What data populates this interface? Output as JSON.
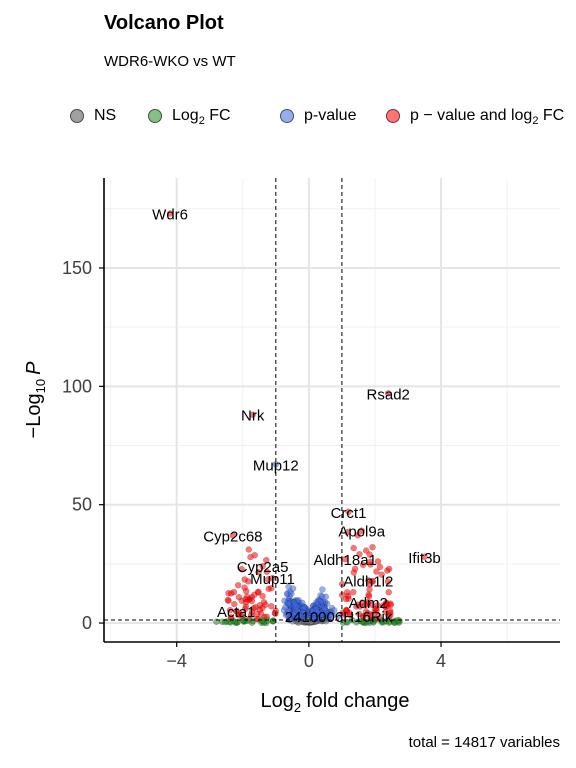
{
  "chart_data": {
    "type": "scatter",
    "title": "Volcano Plot",
    "subtitle": "WDR6-WKO vs WT",
    "caption": "total = 14817 variables",
    "xlabel": "fold change",
    "xlabel_prefix": "Log",
    "xlabel_sub": "2",
    "ylabel": "P",
    "ylabel_prefix": "−Log",
    "ylabel_sub": "10",
    "xlim": [
      -6.2,
      7.6
    ],
    "ylim": [
      -8,
      188
    ],
    "xticks": [
      -4,
      0,
      4
    ],
    "yticks": [
      0,
      50,
      100,
      150
    ],
    "fc_cutoff": 1,
    "p_cutoff_neglog10": 1.3,
    "grid": true,
    "legend_position": "top",
    "legend": [
      {
        "key": "NS",
        "label": "NS",
        "color": "#808080"
      },
      {
        "key": "FC",
        "label_main": "Log",
        "label_sub": "2",
        "label_tail": " FC",
        "color": "#228B22"
      },
      {
        "key": "P",
        "label": "p-value",
        "color": "#4169E1"
      },
      {
        "key": "FCP",
        "label_main": "p − value and log",
        "label_sub": "2",
        "label_tail": " FC",
        "color": "#FF0000"
      }
    ],
    "labeled_points": [
      {
        "label": "Wdr6",
        "x": -4.2,
        "y": 173
      },
      {
        "label": "Rsad2",
        "x": 2.4,
        "y": 97
      },
      {
        "label": "Nrk",
        "x": -1.7,
        "y": 88
      },
      {
        "label": "Mup12",
        "x": -1.0,
        "y": 67
      },
      {
        "label": "Crct1",
        "x": 1.2,
        "y": 47
      },
      {
        "label": "Apol9a",
        "x": 1.6,
        "y": 39
      },
      {
        "label": "Cyp2c68",
        "x": -2.3,
        "y": 37
      },
      {
        "label": "Ifit3b",
        "x": 3.5,
        "y": 28
      },
      {
        "label": "Aldh18a1",
        "x": 1.1,
        "y": 27
      },
      {
        "label": "Cyp2a5",
        "x": -1.4,
        "y": 24
      },
      {
        "label": "Mup11",
        "x": -1.1,
        "y": 19
      },
      {
        "label": "Aldh1l2",
        "x": 1.8,
        "y": 18
      },
      {
        "label": "Adm2",
        "x": 1.8,
        "y": 9
      },
      {
        "label": "Acta1",
        "x": -2.2,
        "y": 5
      },
      {
        "label": "2410006H16Rik",
        "x": 0.9,
        "y": 3
      }
    ]
  }
}
